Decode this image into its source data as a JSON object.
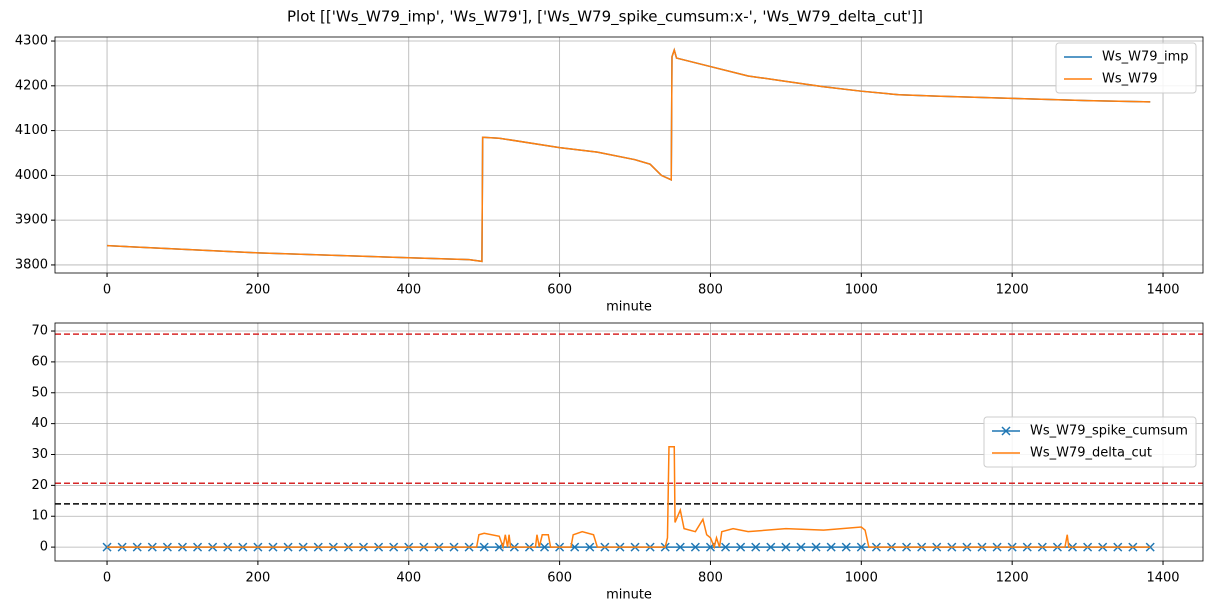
{
  "title": "Plot [['Ws_W79_imp', 'Ws_W79'], ['Ws_W79_spike_cumsum:x-', 'Ws_W79_delta_cut']]",
  "chart_data": [
    {
      "type": "line",
      "x_label": "minute",
      "xlim": [
        -69,
        1453
      ],
      "ylim": [
        3782,
        4309
      ],
      "xticks": [
        0,
        200,
        400,
        600,
        800,
        1000,
        1200,
        1400
      ],
      "yticks": [
        3800,
        3900,
        4000,
        4100,
        4200,
        4300
      ],
      "grid": true,
      "legend": "upper right",
      "x": [
        0,
        200,
        400,
        480,
        497,
        498,
        520,
        600,
        650,
        700,
        720,
        735,
        748,
        749,
        752,
        755,
        800,
        850,
        900,
        950,
        1000,
        1050,
        1100,
        1200,
        1300,
        1383
      ],
      "series": [
        {
          "name": "Ws_W79_imp",
          "color": "#1f77b4",
          "values": [
            3843,
            3827,
            3816,
            3812,
            3808,
            4085,
            4083,
            4062,
            4052,
            4035,
            4025,
            4000,
            3990,
            4265,
            4280,
            4262,
            4243,
            4222,
            4210,
            4198,
            4188,
            4180,
            4177,
            4172,
            4167,
            4164
          ]
        },
        {
          "name": "Ws_W79",
          "color": "#ff7f0e",
          "values": [
            3843,
            3827,
            3816,
            3812,
            3808,
            4085,
            4083,
            4062,
            4052,
            4035,
            4025,
            4000,
            3990,
            4265,
            4280,
            4262,
            4243,
            4222,
            4210,
            4198,
            4188,
            4180,
            4177,
            4172,
            4167,
            4164
          ]
        }
      ]
    },
    {
      "type": "line",
      "x_label": "minute",
      "xlim": [
        -69,
        1453
      ],
      "ylim": [
        -4.5,
        72.6
      ],
      "xticks": [
        0,
        200,
        400,
        600,
        800,
        1000,
        1200,
        1400
      ],
      "yticks": [
        0,
        10,
        20,
        30,
        40,
        50,
        60,
        70
      ],
      "grid": true,
      "legend": "center right",
      "hlines": [
        {
          "value": 69,
          "color": "#d62728"
        },
        {
          "value": 20.7,
          "color": "#d62728"
        },
        {
          "value": 14,
          "color": "#000000"
        }
      ],
      "series": [
        {
          "name": "Ws_W79_spike_cumsum",
          "color": "#1f77b4",
          "marker": "x",
          "x": [
            0,
            20,
            40,
            60,
            80,
            100,
            120,
            140,
            160,
            180,
            200,
            220,
            240,
            260,
            280,
            300,
            320,
            340,
            360,
            380,
            400,
            420,
            440,
            460,
            480,
            500,
            520,
            540,
            560,
            580,
            600,
            620,
            640,
            660,
            680,
            700,
            720,
            740,
            760,
            780,
            800,
            820,
            840,
            860,
            880,
            900,
            920,
            940,
            960,
            980,
            1000,
            1020,
            1040,
            1060,
            1080,
            1100,
            1120,
            1140,
            1160,
            1180,
            1200,
            1220,
            1240,
            1260,
            1280,
            1300,
            1320,
            1340,
            1360,
            1383
          ],
          "values": [
            0,
            0,
            0,
            0,
            0,
            0,
            0,
            0,
            0,
            0,
            0,
            0,
            0,
            0,
            0,
            0,
            0,
            0,
            0,
            0,
            0,
            0,
            0,
            0,
            0,
            0,
            0,
            0,
            0,
            0,
            0,
            0,
            0,
            0,
            0,
            0,
            0,
            0,
            0,
            0,
            0,
            0,
            0,
            0,
            0,
            0,
            0,
            0,
            0,
            0,
            0,
            0,
            0,
            0,
            0,
            0,
            0,
            0,
            0,
            0,
            0,
            0,
            0,
            0,
            0,
            0,
            0,
            0,
            0,
            0
          ]
        },
        {
          "name": "Ws_W79_delta_cut",
          "color": "#ff7f0e",
          "x": [
            0,
            490,
            493,
            500,
            520,
            525,
            528,
            531,
            533,
            535,
            568,
            570,
            573,
            577,
            585,
            588,
            615,
            618,
            630,
            645,
            650,
            740,
            743,
            745,
            752,
            753,
            760,
            765,
            780,
            790,
            795,
            800,
            805,
            808,
            812,
            815,
            830,
            850,
            900,
            950,
            1000,
            1005,
            1010,
            1270,
            1273,
            1275,
            1383
          ],
          "values": [
            0,
            0,
            4,
            4.5,
            3.5,
            0,
            4,
            0,
            4,
            0,
            0,
            4,
            0,
            4,
            4,
            0,
            0,
            4,
            5,
            4,
            0,
            0,
            3,
            32.5,
            32.5,
            8,
            12,
            6,
            5,
            9,
            4,
            3,
            0,
            3,
            0,
            5,
            6,
            5,
            6,
            5.5,
            6.5,
            5.5,
            0,
            0,
            4,
            0,
            0
          ]
        }
      ]
    }
  ]
}
